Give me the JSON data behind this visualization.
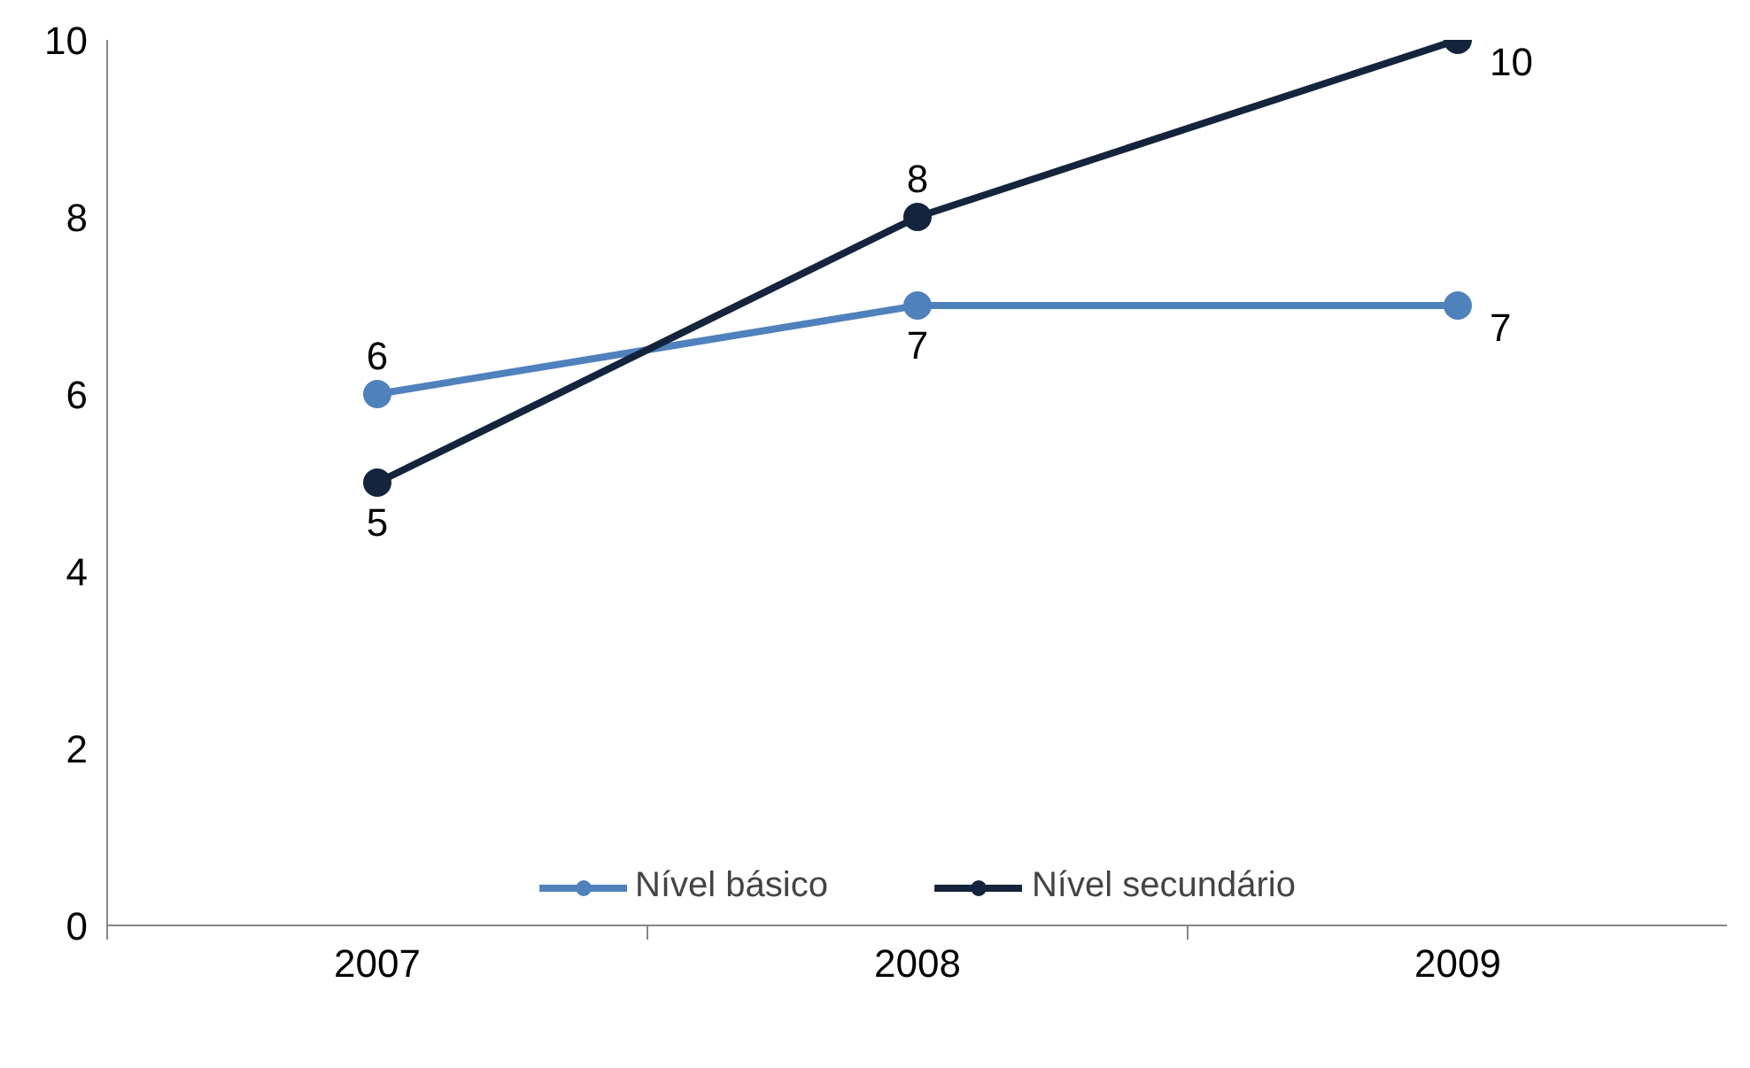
{
  "chart_data": {
    "type": "line",
    "categories": [
      "2007",
      "2008",
      "2009"
    ],
    "series": [
      {
        "name": "Nível básico",
        "color": "#4f81bd",
        "values": [
          6,
          7,
          7
        ]
      },
      {
        "name": "Nível secundário",
        "color": "#14243d",
        "values": [
          5,
          8,
          10
        ]
      }
    ],
    "ylim": [
      0,
      10
    ],
    "yticks": [
      0,
      2,
      4,
      6,
      8,
      10
    ],
    "grid": false,
    "legend": "bottom",
    "marker": "circle",
    "line_style": "solid",
    "data_labels": true
  }
}
